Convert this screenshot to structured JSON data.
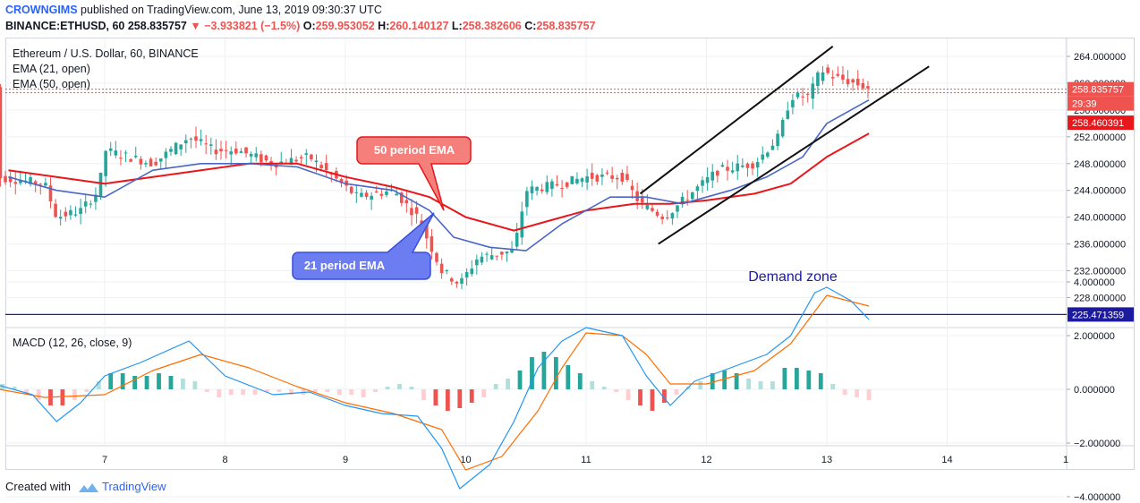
{
  "header": {
    "user": "CROWNGIMS",
    "published_text": "published on TradingView.com, June 13, 2019 09:30:37 UTC",
    "symbol": "BINANCE:ETHUSD, 60",
    "last": "258.835757",
    "change": "−3.933821 (−1.5%)",
    "o_label": "O:",
    "o": "259.953052",
    "h_label": "H:",
    "h": "260.140127",
    "l_label": "L:",
    "l": "258.382606",
    "c_label": "C:",
    "c": "258.835757"
  },
  "legend": {
    "title": "Ethereum / U.S. Dollar, 60, BINANCE",
    "ema21": "EMA (21, open)",
    "ema50": "EMA (50, open)",
    "macd": "MACD (12, 26, close, 9)"
  },
  "annotations": {
    "ema50_callout": "50 period EMA",
    "ema21_callout": "21 period EMA",
    "demand": "Demand zone"
  },
  "price_tags": {
    "last": "258.835757",
    "countdown": "29:39",
    "ema50": "258.460391",
    "support": "225.471359"
  },
  "footer": {
    "created": "Created with",
    "brand": "TradingView"
  },
  "colors": {
    "up": "#26a69a",
    "down": "#ef5350",
    "ema21": "#4a67c7",
    "ema50": "#e8171c",
    "support": "#1c1a9e",
    "macd": "#2196f3",
    "signal": "#ff6d00"
  },
  "chart_data": [
    {
      "type": "candlestick",
      "title": "Ethereum / U.S. Dollar, 60, BINANCE",
      "x_ticks": [
        "7",
        "8",
        "9",
        "10",
        "11",
        "12",
        "13",
        "14",
        "1"
      ],
      "y_ticks": [
        "264.000000",
        "260.000000",
        "256.000000",
        "252.000000",
        "248.000000",
        "244.000000",
        "240.000000",
        "236.000000",
        "232.000000",
        "228.000000"
      ],
      "ylim": [
        224,
        266
      ],
      "ema21_path": [
        [
          6.2,
          246
        ],
        [
          6.6,
          244
        ],
        [
          7.0,
          243
        ],
        [
          7.4,
          247
        ],
        [
          7.8,
          248
        ],
        [
          8.2,
          248
        ],
        [
          8.6,
          247.5
        ],
        [
          9.0,
          245
        ],
        [
          9.4,
          244
        ],
        [
          9.7,
          241
        ],
        [
          9.9,
          237
        ],
        [
          10.2,
          235.5
        ],
        [
          10.5,
          235
        ],
        [
          10.8,
          239
        ],
        [
          11.2,
          243
        ],
        [
          11.5,
          243
        ],
        [
          11.8,
          242
        ],
        [
          12.2,
          244
        ],
        [
          12.5,
          246
        ],
        [
          12.8,
          249
        ],
        [
          13.0,
          254
        ],
        [
          13.35,
          257.5
        ]
      ],
      "ema50_path": [
        [
          6.2,
          247
        ],
        [
          6.6,
          246
        ],
        [
          7.0,
          245
        ],
        [
          7.4,
          246
        ],
        [
          7.8,
          247
        ],
        [
          8.2,
          248
        ],
        [
          8.6,
          248
        ],
        [
          9.0,
          246
        ],
        [
          9.4,
          244.5
        ],
        [
          9.7,
          243
        ],
        [
          10.0,
          240
        ],
        [
          10.4,
          238
        ],
        [
          10.7,
          239.5
        ],
        [
          11.0,
          241
        ],
        [
          11.4,
          242
        ],
        [
          11.7,
          242
        ],
        [
          12.0,
          242.5
        ],
        [
          12.4,
          243.5
        ],
        [
          12.7,
          245
        ],
        [
          13.0,
          249
        ],
        [
          13.35,
          252.5
        ]
      ],
      "support_level": 225.471359,
      "channel_upper": [
        [
          11.45,
          243.5
        ],
        [
          13.05,
          265.5
        ]
      ],
      "channel_lower": [
        [
          11.6,
          236
        ],
        [
          13.85,
          262.5
        ]
      ]
    },
    {
      "type": "line",
      "title": "MACD (12, 26, close, 9)",
      "y_ticks": [
        "4.000000",
        "2.000000",
        "0.000000",
        "−2.000000",
        "−4.000000"
      ],
      "ylim": [
        -4.3,
        4.3
      ],
      "macd": [
        [
          6.0,
          0.3
        ],
        [
          6.4,
          -0.2
        ],
        [
          6.6,
          -1.2
        ],
        [
          6.8,
          -0.5
        ],
        [
          7.0,
          0.5
        ],
        [
          7.3,
          1.0
        ],
        [
          7.7,
          1.8
        ],
        [
          8.0,
          0.5
        ],
        [
          8.4,
          -0.2
        ],
        [
          8.7,
          -0.1
        ],
        [
          9.0,
          -0.6
        ],
        [
          9.3,
          -0.9
        ],
        [
          9.6,
          -1.0
        ],
        [
          9.8,
          -2.2
        ],
        [
          9.95,
          -3.7
        ],
        [
          10.2,
          -2.8
        ],
        [
          10.4,
          -1.2
        ],
        [
          10.6,
          0.8
        ],
        [
          10.8,
          1.8
        ],
        [
          11.0,
          2.3
        ],
        [
          11.3,
          2.0
        ],
        [
          11.5,
          0.5
        ],
        [
          11.7,
          -0.6
        ],
        [
          11.9,
          0.3
        ],
        [
          12.2,
          0.8
        ],
        [
          12.5,
          1.3
        ],
        [
          12.7,
          2.0
        ],
        [
          12.9,
          3.6
        ],
        [
          13.0,
          3.8
        ],
        [
          13.2,
          3.3
        ],
        [
          13.35,
          2.6
        ]
      ],
      "signal": [
        [
          6.0,
          0.1
        ],
        [
          6.5,
          -0.3
        ],
        [
          7.0,
          -0.2
        ],
        [
          7.4,
          0.7
        ],
        [
          7.8,
          1.3
        ],
        [
          8.2,
          0.8
        ],
        [
          8.6,
          0.1
        ],
        [
          9.0,
          -0.5
        ],
        [
          9.4,
          -0.9
        ],
        [
          9.8,
          -1.5
        ],
        [
          10.0,
          -3.0
        ],
        [
          10.3,
          -2.5
        ],
        [
          10.6,
          -0.8
        ],
        [
          10.8,
          0.8
        ],
        [
          11.0,
          2.1
        ],
        [
          11.3,
          2.0
        ],
        [
          11.5,
          1.3
        ],
        [
          11.7,
          0.2
        ],
        [
          12.0,
          0.2
        ],
        [
          12.4,
          0.7
        ],
        [
          12.7,
          1.7
        ],
        [
          13.0,
          3.5
        ],
        [
          13.35,
          3.1
        ]
      ],
      "histogram": [
        [
          6.05,
          0.3
        ],
        [
          6.15,
          0.2
        ],
        [
          6.25,
          0.1
        ],
        [
          6.35,
          -0.2
        ],
        [
          6.45,
          -0.4
        ],
        [
          6.55,
          -0.6
        ],
        [
          6.65,
          -0.6
        ],
        [
          6.75,
          -0.4
        ],
        [
          6.85,
          -0.1
        ],
        [
          6.95,
          0.3
        ],
        [
          7.05,
          0.6
        ],
        [
          7.15,
          0.6
        ],
        [
          7.25,
          0.5
        ],
        [
          7.35,
          0.5
        ],
        [
          7.45,
          0.6
        ],
        [
          7.55,
          0.5
        ],
        [
          7.65,
          0.4
        ],
        [
          7.75,
          0.3
        ],
        [
          7.85,
          -0.1
        ],
        [
          7.95,
          -0.3
        ],
        [
          8.05,
          -0.2
        ],
        [
          8.15,
          -0.2
        ],
        [
          8.25,
          -0.2
        ],
        [
          8.35,
          -0.1
        ],
        [
          8.45,
          -0.1
        ],
        [
          8.55,
          -0.2
        ],
        [
          8.65,
          -0.2
        ],
        [
          8.75,
          -0.1
        ],
        [
          8.85,
          -0.1
        ],
        [
          8.95,
          -0.2
        ],
        [
          9.05,
          -0.2
        ],
        [
          9.15,
          -0.3
        ],
        [
          9.25,
          -0.1
        ],
        [
          9.35,
          0.1
        ],
        [
          9.45,
          0.2
        ],
        [
          9.55,
          0.1
        ],
        [
          9.65,
          -0.4
        ],
        [
          9.75,
          -0.6
        ],
        [
          9.85,
          -0.8
        ],
        [
          9.95,
          -0.7
        ],
        [
          10.05,
          -0.5
        ],
        [
          10.15,
          -0.3
        ],
        [
          10.25,
          0.2
        ],
        [
          10.35,
          0.4
        ],
        [
          10.45,
          0.7
        ],
        [
          10.55,
          1.2
        ],
        [
          10.65,
          1.4
        ],
        [
          10.75,
          1.2
        ],
        [
          10.85,
          0.9
        ],
        [
          10.95,
          0.6
        ],
        [
          11.05,
          0.3
        ],
        [
          11.15,
          0.1
        ],
        [
          11.25,
          -0.1
        ],
        [
          11.35,
          -0.4
        ],
        [
          11.45,
          -0.6
        ],
        [
          11.55,
          -0.8
        ],
        [
          11.65,
          -0.5
        ],
        [
          11.75,
          -0.2
        ],
        [
          11.85,
          0.1
        ],
        [
          11.95,
          0.3
        ],
        [
          12.05,
          0.6
        ],
        [
          12.15,
          0.7
        ],
        [
          12.25,
          0.6
        ],
        [
          12.35,
          0.4
        ],
        [
          12.45,
          0.3
        ],
        [
          12.55,
          0.3
        ],
        [
          12.65,
          0.8
        ],
        [
          12.75,
          0.8
        ],
        [
          12.85,
          0.7
        ],
        [
          12.95,
          0.6
        ],
        [
          13.05,
          0.2
        ],
        [
          13.15,
          -0.2
        ],
        [
          13.25,
          -0.3
        ],
        [
          13.35,
          -0.4
        ]
      ],
      "zero_line": true
    }
  ]
}
